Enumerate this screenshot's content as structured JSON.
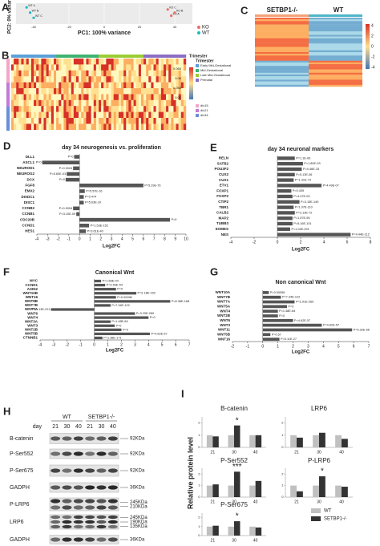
{
  "panel_letters": [
    "A",
    "B",
    "C",
    "D",
    "E",
    "F",
    "G",
    "H",
    "I"
  ],
  "panel_a": {
    "type": "scatter",
    "xlabel": "PC1: 100% variance",
    "ylabel": "PC2: 0% variance",
    "xlim": [
      -50,
      50
    ],
    "xticks": [
      -40,
      -20,
      0,
      20,
      40
    ],
    "ylim": [
      -1,
      1
    ],
    "points": [
      {
        "label": "WT A",
        "group": "WT",
        "x": -44,
        "y": 0.6
      },
      {
        "label": "WT B",
        "group": "WT",
        "x": -42,
        "y": 0.1
      },
      {
        "label": "WT C",
        "group": "WT",
        "x": -40,
        "y": -0.4
      },
      {
        "label": "KO C",
        "group": "KO",
        "x": 36,
        "y": 0.4
      },
      {
        "label": "KO A",
        "group": "KO",
        "x": 38,
        "y": -0.2
      },
      {
        "label": "KO B",
        "group": "KO",
        "x": 40,
        "y": 0.1
      }
    ],
    "legend": [
      {
        "name": "KO",
        "color": "#e8706a"
      },
      {
        "name": "WT",
        "color": "#22b8c0"
      }
    ]
  },
  "panel_b": {
    "legend_title": "Trimester",
    "legend_items": [
      {
        "name": "Early Mid-Gestational",
        "color": "#5aa0d8"
      },
      {
        "name": "Mid-Gestational",
        "color": "#3cb371"
      },
      {
        "name": "Late Mid-Gestational",
        "color": "#9acd32"
      },
      {
        "name": "Prenatal",
        "color": "#8b6dc4"
      }
    ],
    "colorbar_ticks": [
      0.065,
      0.06,
      0.055,
      0.05
    ],
    "sample_title": "Trimester",
    "samples": [
      {
        "name": "div15",
        "color": "#f4a6c8"
      },
      {
        "name": "div21",
        "color": "#c27bd6"
      },
      {
        "name": "div34",
        "color": "#6a8fd8"
      }
    ]
  },
  "panel_c": {
    "columns": [
      "SETBP1-/-",
      "WT"
    ],
    "colorbar_ticks": [
      4,
      2,
      0,
      -2,
      -4
    ]
  },
  "panel_d": {
    "type": "hbar",
    "title": "day 34 neurogenesis vs. proliferation",
    "xlabel": "Log2FC",
    "color": "#555555",
    "categories": [
      "DLL1",
      "ASCL1",
      "NEUROD1",
      "NEUROG2",
      "DCX",
      "FGF8",
      "EMX2",
      "DIXDC1",
      "DISC1",
      "CCNB2",
      "CCNB1",
      "CDC20B",
      "CCND1",
      "HES1"
    ],
    "values": [
      -0.5,
      -3.5,
      -0.6,
      -1.2,
      -1.3,
      6,
      0.5,
      0.4,
      0.4,
      -0.6,
      -0.3,
      8.5,
      0.9,
      0.6
    ],
    "p_labels": [
      "P=0",
      "P=0",
      "P=0.0024",
      "P=5.60E-03",
      "P=0",
      "P=5.29E-76",
      "P=5.57E-16",
      "P=0.474",
      "P=5.63E-10",
      "P=0.0004",
      "P=3.10E-09",
      "P=0",
      "P=1.53E-152",
      "P=3.61E-40"
    ],
    "xlim": [
      -4,
      10
    ],
    "xticks": [
      -4,
      -3,
      -2,
      -1,
      0,
      1,
      2,
      3,
      4,
      5,
      6,
      7,
      8,
      9,
      10
    ]
  },
  "panel_e": {
    "type": "hbar",
    "title": "day 34 neuronal markers",
    "xlabel": "Log2FC",
    "color": "#555555",
    "categories": [
      "RELN",
      "SATB2",
      "POU3F2",
      "CUX2",
      "CUX1",
      "ETV1",
      "FOXP1",
      "FOXP2",
      "CTIP2",
      "TBR1",
      "CALB2",
      "MAP2",
      "TUBB3",
      "EOMES",
      "NES"
    ],
    "values": [
      1.5,
      2.2,
      2.1,
      1.5,
      1.4,
      3.8,
      1.2,
      1.3,
      1.9,
      1.4,
      1.5,
      1.3,
      1.3,
      1.1,
      6.3
    ],
    "p_labels": [
      "P=1.1E-09",
      "P=1.80E-93",
      "P=4.46E-15",
      "P=5.13E-06",
      "P=1.31E-73",
      "P=4.49E-07",
      "P=0.439",
      "P=4.47E-03",
      "P=3.15E-149",
      "P=1.07E-110",
      "P=2.13E-72",
      "P=1.57E-95",
      "P=5.16E-101",
      "P=1.04E-291",
      "P=4.44E-112"
    ],
    "xlim": [
      -4,
      8
    ],
    "xticks": [
      -4,
      -2,
      0,
      2,
      4,
      6,
      8
    ]
  },
  "panel_f": {
    "type": "hbar",
    "title": "Canonical Wnt",
    "xlabel": "Log2FC",
    "color": "#555555",
    "categories": [
      "MYC",
      "CCND1",
      "AXIN2",
      "WNT10B",
      "WNT16",
      "WNT8B",
      "WNT7B",
      "WNT7A",
      "WNT6",
      "WNT4",
      "WNT3A",
      "WNT3",
      "WNT2B",
      "WNT5B",
      "CTNNB1"
    ],
    "values": [
      0.5,
      0.8,
      1.6,
      3.1,
      1.6,
      5.6,
      1.2,
      -3.2,
      3.0,
      4.0,
      1.2,
      1.5,
      2.0,
      4.1,
      0.6
    ],
    "p_labels": [
      "P=1.66E-04",
      "P=3.53E-54",
      "P=0",
      "P=2.18E-152",
      "P=0.00096",
      "P=8.38E-168",
      "P=7.34E-122",
      "P=1.13E-221",
      "P=3.20E-269",
      "P=0",
      "P=1.48E-64",
      "P=0",
      "P=0",
      "P=4.62E-57",
      "P=1.38E-171"
    ],
    "xlim": [
      -4,
      7
    ],
    "xticks": [
      -4,
      -3,
      -2,
      -1,
      0,
      1,
      2,
      3,
      4,
      5,
      6,
      7
    ]
  },
  "panel_g": {
    "type": "hbar",
    "title": "Non canonical Wnt",
    "xlabel": "Log2FC",
    "color": "#555555",
    "categories": [
      "WNT10A",
      "WNT7B",
      "WNT7A",
      "WNT5A",
      "WNT4",
      "WNT2B",
      "WNT6",
      "WNT3",
      "WNT11",
      "WNT5B",
      "WNT16"
    ],
    "values": [
      0.4,
      1.2,
      2.1,
      1.6,
      1.0,
      1.0,
      2.0,
      3.9,
      5.9,
      0.5,
      1.1
    ],
    "p_labels": [
      "P=0.00056",
      "P=7.34E-122",
      "P=2.91E-269",
      "P=0",
      "P=1.48E-64",
      "P=0",
      "P=4.62E-57",
      "P=4.62E-57",
      "P=5.32E-56",
      "P=0.57",
      "P=5.11E-27"
    ],
    "xlim": [
      -2,
      7
    ],
    "xticks": [
      -2,
      -1,
      0,
      1,
      2,
      3,
      4,
      5,
      6,
      7
    ]
  },
  "panel_h": {
    "day_label": "day",
    "groups": [
      "WT",
      "SETBP1-/-"
    ],
    "days": [
      "21",
      "30",
      "40",
      "21",
      "30",
      "40"
    ],
    "rows": [
      {
        "name": "B-catenin",
        "sizes": [
          "92KDa"
        ]
      },
      {
        "name": "P-Ser552",
        "sizes": [
          "92KDa"
        ]
      },
      {
        "name": "P-Ser675",
        "sizes": [
          "92KDa"
        ]
      },
      {
        "name": "GADPH",
        "sizes": [
          "36KDa"
        ]
      },
      {
        "name": "P-LRP6",
        "sizes": [
          "245KDa",
          "210KDa"
        ]
      },
      {
        "name": "LRP6",
        "sizes": [
          "245KDa",
          "190KDa",
          "135KDa"
        ]
      },
      {
        "name": "GADPH",
        "sizes": [
          "36KDa"
        ]
      }
    ]
  },
  "panel_i": {
    "ylabel": "Relative protein level",
    "categories": [
      "21",
      "30",
      "40"
    ],
    "ylim": [
      0,
      2.5
    ],
    "yticks": [
      0,
      1,
      2
    ],
    "legend": [
      {
        "name": "WT",
        "color": "#c0c0c0"
      },
      {
        "name": "SETBP1-/-",
        "color": "#333333"
      }
    ],
    "charts": [
      {
        "title": "B-catenin",
        "wt": [
          1,
          1,
          1
        ],
        "ko": [
          0.9,
          1.8,
          1.0
        ],
        "significance": [
          null,
          "*",
          null
        ]
      },
      {
        "title": "LRP6",
        "wt": [
          1,
          1,
          1
        ],
        "ko": [
          0.8,
          1.2,
          0.7
        ],
        "significance": [
          null,
          null,
          null
        ]
      },
      {
        "title": "P-Ser552",
        "wt": [
          1,
          1,
          1
        ],
        "ko": [
          1.1,
          2.2,
          1.4
        ],
        "significance": [
          null,
          "***",
          null
        ]
      },
      {
        "title": "P-LRP6",
        "wt": [
          1,
          1,
          1
        ],
        "ko": [
          0.5,
          1.8,
          0.9
        ],
        "significance": [
          null,
          "*",
          null
        ]
      },
      {
        "title": "P-Ser675",
        "wt": [
          1,
          1,
          1
        ],
        "ko": [
          1.1,
          1.6,
          0.9
        ],
        "significance": [
          null,
          "*",
          null
        ]
      }
    ]
  }
}
